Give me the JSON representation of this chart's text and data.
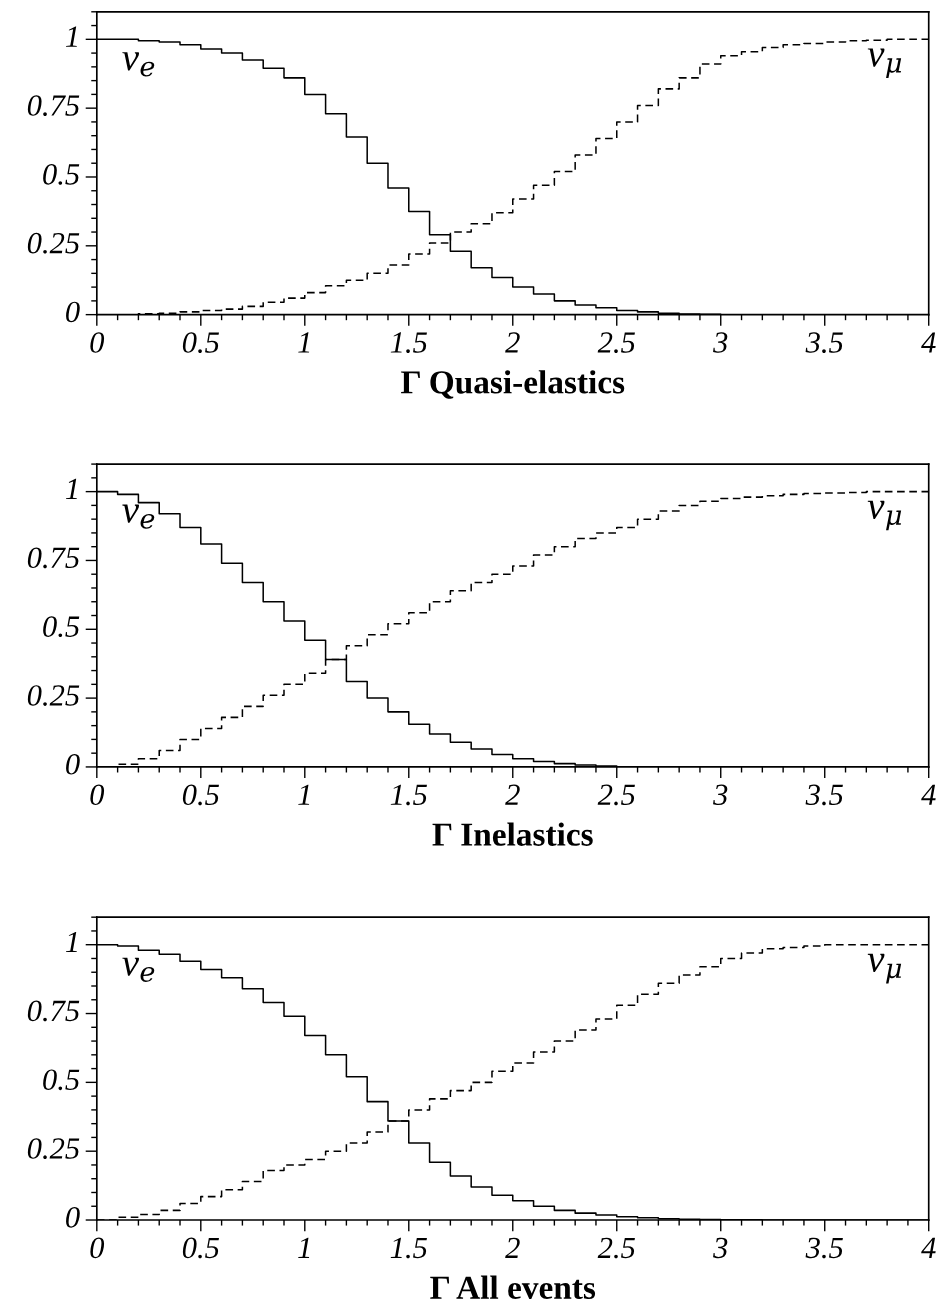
{
  "chart_data": [
    {
      "type": "step",
      "xlabel": "Γ Quasi-elastics",
      "xlim": [
        0,
        4
      ],
      "xticks": [
        0,
        0.5,
        1,
        1.5,
        2,
        2.5,
        3,
        3.5,
        4
      ],
      "ylim": [
        0,
        1.1
      ],
      "yticks": [
        0,
        0.25,
        0.5,
        0.75,
        1
      ],
      "grid": false,
      "x": [
        0,
        0.1,
        0.2,
        0.3,
        0.4,
        0.5,
        0.6,
        0.7,
        0.8,
        0.9,
        1.0,
        1.1,
        1.2,
        1.3,
        1.4,
        1.5,
        1.6,
        1.7,
        1.8,
        1.9,
        2.0,
        2.1,
        2.2,
        2.3,
        2.4,
        2.5,
        2.6,
        2.7,
        2.8,
        2.9,
        3.0,
        3.1,
        3.2,
        3.3,
        3.4,
        3.5,
        3.6,
        3.7,
        3.8,
        3.9,
        4.0
      ],
      "series": [
        {
          "name": "ν$_{e}$",
          "color": "#000000",
          "line_style": "solid",
          "values": [
            1.0,
            1.0,
            0.995,
            0.99,
            0.98,
            0.965,
            0.95,
            0.925,
            0.895,
            0.86,
            0.8,
            0.73,
            0.645,
            0.55,
            0.46,
            0.375,
            0.29,
            0.23,
            0.17,
            0.135,
            0.1,
            0.075,
            0.05,
            0.035,
            0.025,
            0.015,
            0.01,
            0.005,
            0.002,
            0.001,
            0,
            0,
            0,
            0,
            0,
            0,
            0,
            0,
            0,
            0,
            0
          ]
        },
        {
          "name": "ν$_{μ}$",
          "color": "#000000",
          "line_style": "dashed",
          "values": [
            0,
            0,
            0.003,
            0.005,
            0.01,
            0.015,
            0.02,
            0.03,
            0.045,
            0.06,
            0.08,
            0.105,
            0.125,
            0.15,
            0.18,
            0.22,
            0.26,
            0.3,
            0.33,
            0.37,
            0.42,
            0.47,
            0.52,
            0.58,
            0.64,
            0.7,
            0.76,
            0.82,
            0.86,
            0.91,
            0.94,
            0.955,
            0.97,
            0.98,
            0.985,
            0.99,
            0.995,
            0.997,
            1,
            1,
            1
          ]
        }
      ]
    },
    {
      "type": "step",
      "xlabel": "Γ Inelastics",
      "xlim": [
        0,
        4
      ],
      "xticks": [
        0,
        0.5,
        1,
        1.5,
        2,
        2.5,
        3,
        3.5,
        4
      ],
      "ylim": [
        0,
        1.1
      ],
      "yticks": [
        0,
        0.25,
        0.5,
        0.75,
        1
      ],
      "grid": false,
      "x": [
        0,
        0.1,
        0.2,
        0.3,
        0.4,
        0.5,
        0.6,
        0.7,
        0.8,
        0.9,
        1.0,
        1.1,
        1.2,
        1.3,
        1.4,
        1.5,
        1.6,
        1.7,
        1.8,
        1.9,
        2.0,
        2.1,
        2.2,
        2.3,
        2.4,
        2.5,
        2.6,
        2.7,
        2.8,
        2.9,
        3.0,
        3.1,
        3.2,
        3.3,
        3.4,
        3.5,
        3.6,
        3.7,
        3.8,
        3.9,
        4.0
      ],
      "series": [
        {
          "name": "ν$_{e}$",
          "color": "#000000",
          "line_style": "solid",
          "values": [
            1,
            0.99,
            0.96,
            0.92,
            0.87,
            0.81,
            0.74,
            0.67,
            0.6,
            0.53,
            0.46,
            0.39,
            0.31,
            0.25,
            0.2,
            0.155,
            0.12,
            0.09,
            0.065,
            0.045,
            0.03,
            0.02,
            0.012,
            0.007,
            0.003,
            0.001,
            0,
            0,
            0,
            0,
            0,
            0,
            0,
            0,
            0,
            0,
            0,
            0,
            0,
            0,
            0
          ]
        },
        {
          "name": "ν$_{μ}$",
          "color": "#000000",
          "line_style": "dashed",
          "values": [
            0,
            0.01,
            0.03,
            0.06,
            0.1,
            0.14,
            0.18,
            0.22,
            0.26,
            0.3,
            0.34,
            0.39,
            0.44,
            0.48,
            0.52,
            0.56,
            0.6,
            0.64,
            0.67,
            0.7,
            0.73,
            0.77,
            0.8,
            0.83,
            0.85,
            0.87,
            0.9,
            0.93,
            0.95,
            0.965,
            0.975,
            0.98,
            0.985,
            0.99,
            0.993,
            0.995,
            0.997,
            1,
            1,
            1,
            1
          ]
        }
      ]
    },
    {
      "type": "step",
      "xlabel": "Γ All events",
      "xlim": [
        0,
        4
      ],
      "xticks": [
        0,
        0.5,
        1,
        1.5,
        2,
        2.5,
        3,
        3.5,
        4
      ],
      "ylim": [
        0,
        1.1
      ],
      "yticks": [
        0,
        0.25,
        0.5,
        0.75,
        1
      ],
      "grid": false,
      "x": [
        0,
        0.1,
        0.2,
        0.3,
        0.4,
        0.5,
        0.6,
        0.7,
        0.8,
        0.9,
        1.0,
        1.1,
        1.2,
        1.3,
        1.4,
        1.5,
        1.6,
        1.7,
        1.8,
        1.9,
        2.0,
        2.1,
        2.2,
        2.3,
        2.4,
        2.5,
        2.6,
        2.7,
        2.8,
        2.9,
        3.0,
        3.1,
        3.2,
        3.3,
        3.4,
        3.5,
        3.6,
        3.7,
        3.8,
        3.9,
        4.0
      ],
      "series": [
        {
          "name": "ν$_{e}$",
          "color": "#000000",
          "line_style": "solid",
          "values": [
            1,
            0.995,
            0.98,
            0.965,
            0.94,
            0.91,
            0.88,
            0.84,
            0.79,
            0.74,
            0.67,
            0.6,
            0.52,
            0.43,
            0.36,
            0.28,
            0.21,
            0.16,
            0.12,
            0.09,
            0.07,
            0.05,
            0.035,
            0.025,
            0.018,
            0.012,
            0.008,
            0.005,
            0.003,
            0.002,
            0.001,
            0.001,
            0,
            0,
            0,
            0,
            0,
            0,
            0,
            0,
            0
          ]
        },
        {
          "name": "ν$_{μ}$",
          "color": "#000000",
          "line_style": "dashed",
          "values": [
            0,
            0.01,
            0.02,
            0.035,
            0.06,
            0.085,
            0.11,
            0.14,
            0.18,
            0.2,
            0.22,
            0.25,
            0.28,
            0.32,
            0.36,
            0.4,
            0.44,
            0.47,
            0.5,
            0.54,
            0.57,
            0.61,
            0.65,
            0.69,
            0.73,
            0.78,
            0.82,
            0.86,
            0.89,
            0.92,
            0.95,
            0.97,
            0.985,
            0.99,
            0.995,
            1,
            1,
            1,
            1,
            1,
            1
          ]
        }
      ]
    }
  ]
}
